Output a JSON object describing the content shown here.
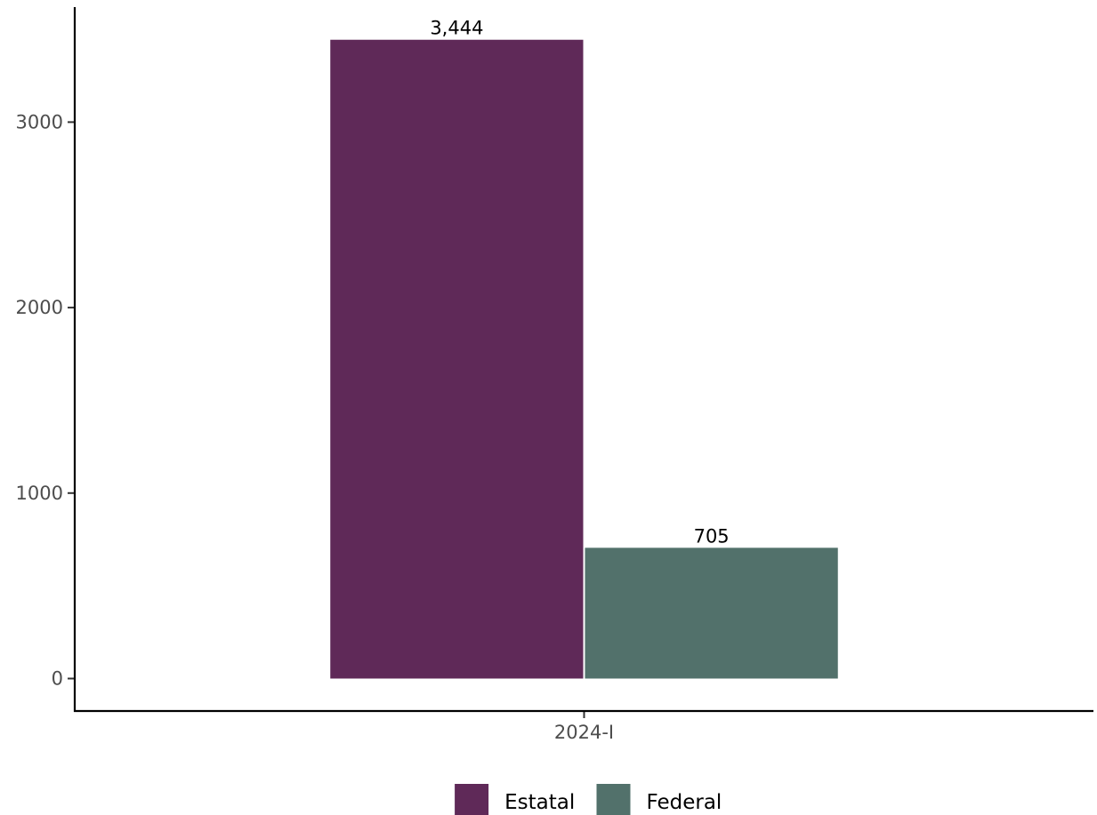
{
  "chart_data": {
    "type": "bar",
    "categories": [
      "2024-I"
    ],
    "series": [
      {
        "name": "Estatal",
        "values": [
          3444
        ],
        "labels": [
          "3,444"
        ],
        "color": "#5f2958"
      },
      {
        "name": "Federal",
        "values": [
          705
        ],
        "labels": [
          "705"
        ],
        "color": "#52716b"
      }
    ],
    "title": "",
    "xlabel": "",
    "ylabel": "",
    "ylim": [
      -175,
      3620
    ],
    "yticks": [
      0,
      1000,
      2000,
      3000
    ],
    "ytick_labels": [
      "0",
      "1000",
      "2000",
      "3000"
    ],
    "grid": false,
    "legend_position": "bottom"
  }
}
